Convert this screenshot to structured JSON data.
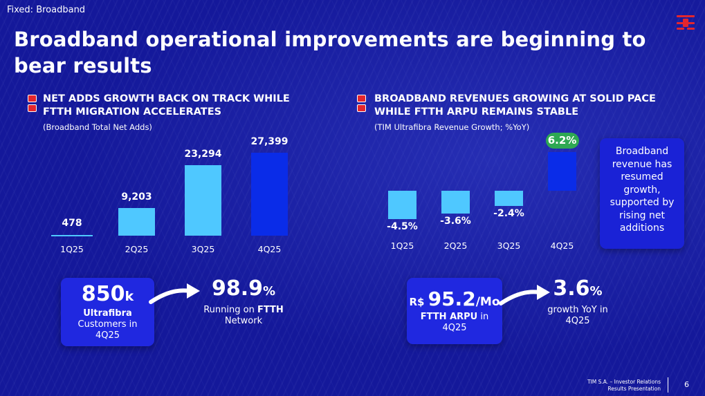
{
  "header": {
    "section_tag": "Fixed: Broadband",
    "title": "Broadband operational improvements are beginning to bear results"
  },
  "left": {
    "heading_line1": "NET ADDS GROWTH BACK ON TRACK WHILE",
    "heading_line2": "FTTH MIGRATION ACCELERATES",
    "subtitle": "(Broadband Total Net Adds)"
  },
  "right": {
    "heading_line1": "BROADBAND REVENUES GROWING AT SOLID PACE",
    "heading_line2": "WHILE FTTH ARPU REMAINS STABLE",
    "subtitle": "(TIM Ultrafibra Revenue Growth; %YoY)",
    "callout": "Broadband revenue has resumed growth, supported by rising net additions"
  },
  "chart_data": [
    {
      "type": "bar",
      "categories": [
        "1Q25",
        "2Q25",
        "3Q25",
        "4Q25"
      ],
      "values": [
        478,
        9203,
        23294,
        27399
      ],
      "labels": [
        "478",
        "9,203",
        "23,294",
        "27,399"
      ],
      "title": "",
      "xlabel": "",
      "ylabel": "",
      "ylim": [
        0,
        27399
      ],
      "colors": [
        "#4fc8ff",
        "#4fc8ff",
        "#4fc8ff",
        "#0a2ce8"
      ]
    },
    {
      "type": "bar",
      "categories": [
        "1Q25",
        "2Q25",
        "3Q25",
        "4Q25"
      ],
      "values": [
        -4.5,
        -3.6,
        -2.4,
        6.2
      ],
      "labels": [
        "-4.5%",
        "-3.6%",
        "-2.4%",
        "6.2%"
      ],
      "title": "",
      "xlabel": "",
      "ylabel": "",
      "ylim": [
        -4.5,
        6.2
      ],
      "colors": [
        "#4fc8ff",
        "#4fc8ff",
        "#4fc8ff",
        "#0a2ce8"
      ],
      "highlight_color": "#2ea853"
    }
  ],
  "kpis": {
    "customers": {
      "value": "850",
      "unit": "k",
      "bold": "Ultrafibra",
      "line2": "Customers in",
      "line3": "4Q25"
    },
    "ftth_share": {
      "value": "98.9",
      "unit": "%",
      "prefix": "Running on ",
      "bold": "FTTH",
      "line2": "Network"
    },
    "arpu": {
      "currency": "R$",
      "value": "95.2",
      "unit": "/Mo",
      "bold": "FTTH ARPU",
      "suffix": " in",
      "line2": "4Q25"
    },
    "growth": {
      "value": "3.6",
      "unit": "%",
      "line1": "growth YoY in",
      "line2": "4Q25"
    }
  },
  "footer": {
    "line1": "TIM S.A. – Investor Relations",
    "line2": "Results Presentation",
    "page": "6"
  }
}
